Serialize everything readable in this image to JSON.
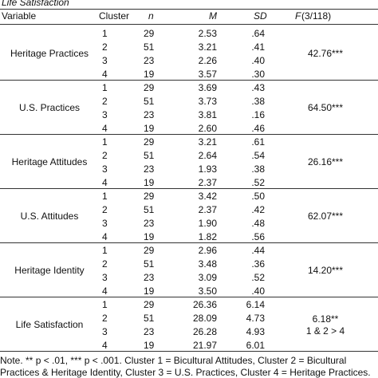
{
  "caption": "Life Satisfaction",
  "table": {
    "header": {
      "variable": "Variable",
      "cluster": "Cluster",
      "n": "n",
      "m": "M",
      "sd": "SD",
      "f_letter": "F",
      "f_df": "(3/118)"
    },
    "groups": [
      {
        "variable": "Heritage Practices",
        "f": [
          "42.76***"
        ],
        "rows": [
          [
            "1",
            "29",
            "2.53",
            ".64"
          ],
          [
            "2",
            "51",
            "3.21",
            ".41"
          ],
          [
            "3",
            "23",
            "2.26",
            ".40"
          ],
          [
            "4",
            "19",
            "3.57",
            ".30"
          ]
        ]
      },
      {
        "variable": "U.S. Practices",
        "f": [
          "64.50***"
        ],
        "rows": [
          [
            "1",
            "29",
            "3.69",
            ".43"
          ],
          [
            "2",
            "51",
            "3.73",
            ".38"
          ],
          [
            "3",
            "23",
            "3.81",
            ".16"
          ],
          [
            "4",
            "19",
            "2.60",
            ".46"
          ]
        ]
      },
      {
        "variable": "Heritage Attitudes",
        "f": [
          "26.16***"
        ],
        "rows": [
          [
            "1",
            "29",
            "3.21",
            ".61"
          ],
          [
            "2",
            "51",
            "2.64",
            ".54"
          ],
          [
            "3",
            "23",
            "1.93",
            ".38"
          ],
          [
            "4",
            "19",
            "2.37",
            ".52"
          ]
        ]
      },
      {
        "variable": "U.S. Attitudes",
        "f": [
          "62.07***"
        ],
        "rows": [
          [
            "1",
            "29",
            "3.42",
            ".50"
          ],
          [
            "2",
            "51",
            "2.37",
            ".42"
          ],
          [
            "3",
            "23",
            "1.90",
            ".48"
          ],
          [
            "4",
            "19",
            "1.82",
            ".56"
          ]
        ]
      },
      {
        "variable": "Heritage Identity",
        "f": [
          "14.20***"
        ],
        "rows": [
          [
            "1",
            "29",
            "2.96",
            ".44"
          ],
          [
            "2",
            "51",
            "3.48",
            ".36"
          ],
          [
            "3",
            "23",
            "3.09",
            ".52"
          ],
          [
            "4",
            "19",
            "3.50",
            ".40"
          ]
        ]
      },
      {
        "variable": "Life Satisfaction",
        "f": [
          "6.18**",
          "1 & 2 > 4"
        ],
        "rows": [
          [
            "1",
            "29",
            "26.36",
            "6.14"
          ],
          [
            "2",
            "51",
            "28.09",
            "4.73"
          ],
          [
            "3",
            "23",
            "26.28",
            "4.93"
          ],
          [
            "4",
            "19",
            "21.97",
            "6.01"
          ]
        ]
      }
    ]
  },
  "note": [
    "Note. ** p < .01, *** p < .001. Cluster 1 = Bicultural Attitudes, Cluster 2 = Bicultural",
    "Practices & Heritage Identity, Cluster 3 = U.S. Practices, Cluster 4 = Heritage Practices."
  ]
}
